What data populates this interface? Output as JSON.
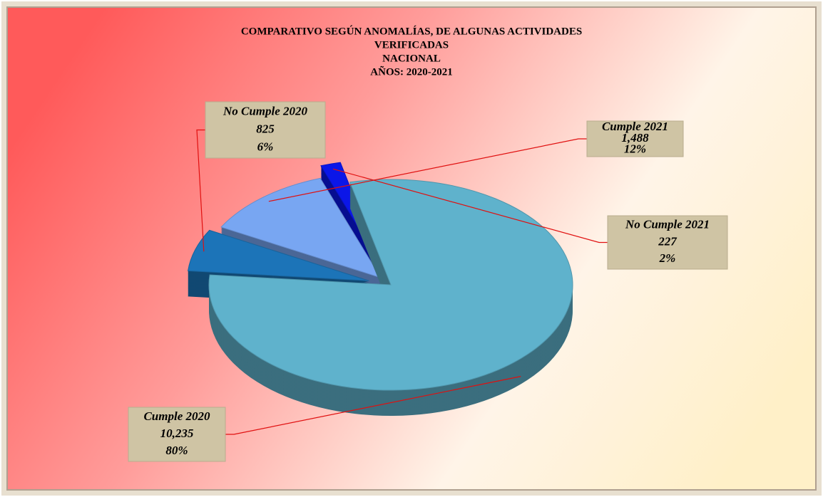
{
  "chart_data": {
    "type": "pie3d",
    "title": [
      "COMPARATIVO SEGÚN ANOMALÍAS, DE ALGUNAS ACTIVIDADES",
      "VERIFICADAS",
      "NACIONAL",
      "AÑOS: 2020-2021"
    ],
    "categories": [
      "Cumple 2020",
      "No Cumple 2020",
      "Cumple 2021",
      "No Cumple 2021"
    ],
    "values": [
      10235,
      825,
      1488,
      227
    ],
    "value_labels": [
      "10,235",
      "825",
      "1,488",
      "227"
    ],
    "percentages": [
      80,
      6,
      12,
      2
    ],
    "percentage_labels": [
      "80%",
      "6%",
      "12%",
      "2%"
    ],
    "colors": [
      "#5fb2cc",
      "#1c74b8",
      "#78a6f2",
      "#0b16e8"
    ]
  }
}
